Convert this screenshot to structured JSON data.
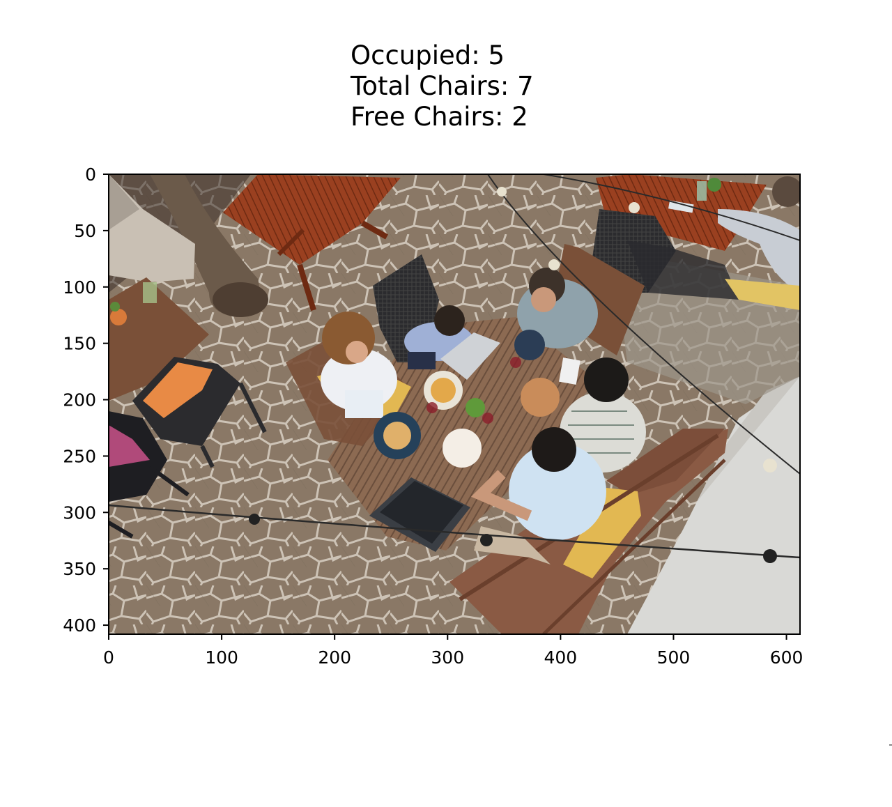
{
  "title": {
    "occupied": "Occupied: 5",
    "total": "Total Chairs: 7",
    "free": "Free Chairs: 2"
  },
  "axes": {
    "x_ticks": [
      "0",
      "100",
      "200",
      "300",
      "400",
      "500",
      "600"
    ],
    "y_ticks": [
      "0",
      "50",
      "100",
      "150",
      "200",
      "250",
      "300",
      "350",
      "400"
    ],
    "x_range": [
      0,
      612
    ],
    "y_range": [
      0,
      408
    ]
  },
  "scene": {
    "occupied_chairs": 5,
    "total_chairs": 7,
    "free_chairs": 2,
    "colors": {
      "pavement": "#8a7866",
      "pavement_grout": "#cdc3b6",
      "table_wood": "#8c6a52",
      "red_table": "#8e3a1d",
      "cushion_brown": "#8a5a44",
      "cushion_yellow": "#e2b852",
      "cushion_orange": "#e88a45",
      "chair_dark": "#2b2b2e",
      "sidewalk": "#d9d9d6"
    }
  }
}
